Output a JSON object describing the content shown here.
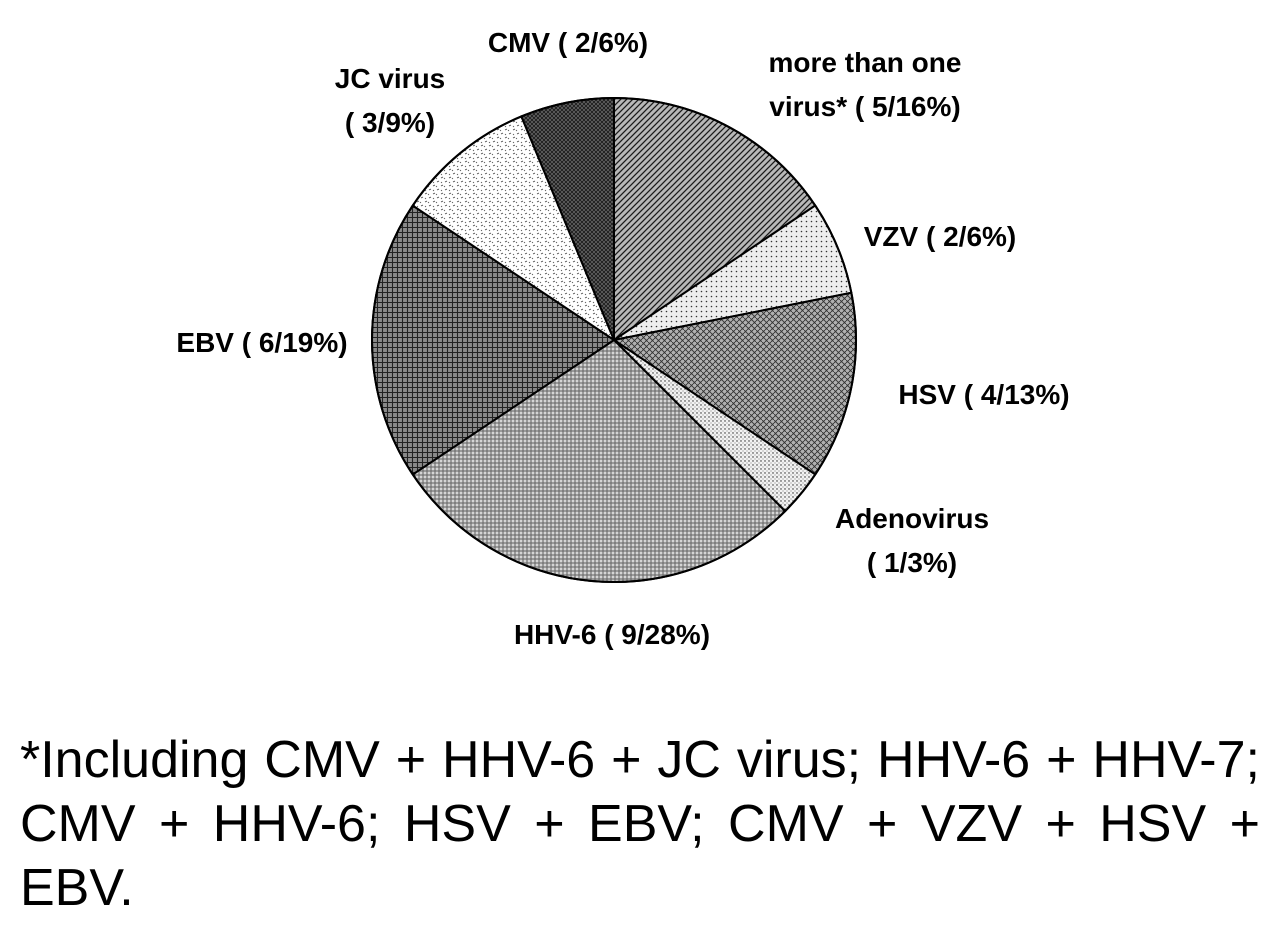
{
  "chart_data": {
    "type": "pie",
    "title": "",
    "start": "12 o'clock, clockwise",
    "slices": [
      {
        "name": "more than one virus*",
        "count": 5,
        "percent": 16,
        "label_lines": [
          "more than one",
          "virus* ( 5/16%)"
        ],
        "pattern": "diag-dense",
        "base": "#9a9a9a"
      },
      {
        "name": "VZV",
        "count": 2,
        "percent": 6,
        "label_lines": [
          "VZV ( 2/6%)"
        ],
        "pattern": "dots-sparse",
        "base": "#e0e0e0"
      },
      {
        "name": "HSV",
        "count": 4,
        "percent": 13,
        "label_lines": [
          "HSV ( 4/13%)"
        ],
        "pattern": "weave",
        "base": "#a8a8a8"
      },
      {
        "name": "Adenovirus",
        "count": 1,
        "percent": 3,
        "label_lines": [
          "Adenovirus",
          "( 1/3%)"
        ],
        "pattern": "dots-fine",
        "base": "#d8d8d8"
      },
      {
        "name": "HHV-6",
        "count": 9,
        "percent": 28,
        "label_lines": [
          "HHV-6 ( 9/28%)"
        ],
        "pattern": "dots-medium",
        "base": "#8c8c8c"
      },
      {
        "name": "EBV",
        "count": 6,
        "percent": 19,
        "label_lines": [
          "EBV ( 6/19%)"
        ],
        "pattern": "crosshatch",
        "base": "#707070"
      },
      {
        "name": "JC virus",
        "count": 3,
        "percent": 9,
        "label_lines": [
          "JC virus",
          "( 3/9%)"
        ],
        "pattern": "confetti",
        "base": "#f2f2f2"
      },
      {
        "name": "CMV",
        "count": 2,
        "percent": 6,
        "label_lines": [
          "CMV ( 2/6%)"
        ],
        "pattern": "dark-grid",
        "base": "#555555"
      }
    ]
  },
  "footnote": "*Including CMV + HHV-6 + JC virus; HHV-6 + HHV-7; CMV + HHV-6; HSV + EBV; CMV + VZV + HSV + EBV."
}
